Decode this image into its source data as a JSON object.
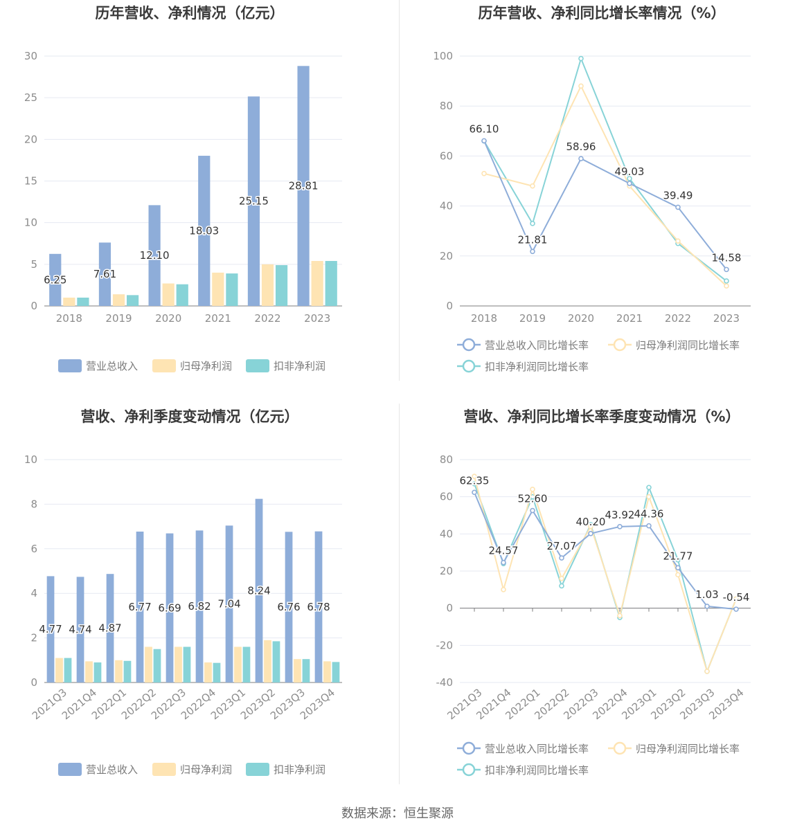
{
  "colors": {
    "revenue": "#8eadd9",
    "parent_profit": "#fee4b3",
    "deducted_profit": "#87d3d7",
    "grid": "#e6e9f2",
    "axis": "#7c7c7c"
  },
  "source_text": "数据来源：恒生聚源",
  "chart_data": [
    {
      "type": "bar",
      "title": "历年营收、净利情况（亿元）",
      "categories": [
        "2018",
        "2019",
        "2020",
        "2021",
        "2022",
        "2023"
      ],
      "ylim": [
        0,
        30
      ],
      "yticks": [
        0,
        5,
        10,
        15,
        20,
        25,
        30
      ],
      "grid": true,
      "legend_position": "bottom",
      "series": [
        {
          "name": "营业总收入",
          "values": [
            6.25,
            7.61,
            12.1,
            18.03,
            25.15,
            28.81
          ],
          "labels": [
            "6.25",
            "7.61",
            "12.10",
            "18.03",
            "25.15",
            "28.81"
          ]
        },
        {
          "name": "归母净利润",
          "values": [
            1.0,
            1.4,
            2.7,
            4.0,
            5.0,
            5.4
          ]
        },
        {
          "name": "扣非净利润",
          "values": [
            1.0,
            1.3,
            2.6,
            3.9,
            4.9,
            5.4
          ]
        }
      ]
    },
    {
      "type": "line",
      "title": "历年营收、净利同比增长率情况（%）",
      "categories": [
        "2018",
        "2019",
        "2020",
        "2021",
        "2022",
        "2023"
      ],
      "ylim": [
        0,
        100
      ],
      "yticks": [
        0,
        20,
        40,
        60,
        80,
        100
      ],
      "grid": true,
      "legend_position": "bottom",
      "series": [
        {
          "name": "营业总收入同比增长率",
          "values": [
            66.1,
            21.81,
            58.96,
            49.03,
            39.49,
            14.58
          ],
          "labels": [
            "66.10",
            "21.81",
            "58.96",
            "49.03",
            "39.49",
            "14.58"
          ]
        },
        {
          "name": "归母净利润同比增长率",
          "values": [
            53,
            48,
            88,
            48,
            26,
            8
          ]
        },
        {
          "name": "扣非净利润同比增长率",
          "values": [
            66,
            33,
            99,
            51,
            25,
            10
          ]
        }
      ]
    },
    {
      "type": "bar",
      "title": "营收、净利季度变动情况（亿元）",
      "categories": [
        "2021Q3",
        "2021Q4",
        "2022Q1",
        "2022Q2",
        "2022Q3",
        "2022Q4",
        "2023Q1",
        "2023Q2",
        "2023Q3",
        "2023Q4"
      ],
      "ylim": [
        0,
        10
      ],
      "yticks": [
        0,
        2,
        4,
        6,
        8,
        10
      ],
      "grid": true,
      "legend_position": "bottom",
      "series": [
        {
          "name": "营业总收入",
          "values": [
            4.77,
            4.74,
            4.87,
            6.77,
            6.69,
            6.82,
            7.04,
            8.24,
            6.76,
            6.78
          ],
          "labels": [
            "4.77",
            "4.74",
            "4.87",
            "6.77",
            "6.69",
            "6.82",
            "7.04",
            "8.24",
            "6.76",
            "6.78"
          ]
        },
        {
          "name": "归母净利润",
          "values": [
            1.1,
            0.95,
            1.0,
            1.6,
            1.6,
            0.9,
            1.6,
            1.9,
            1.05,
            0.95
          ]
        },
        {
          "name": "扣非净利润",
          "values": [
            1.1,
            0.9,
            0.97,
            1.5,
            1.6,
            0.88,
            1.6,
            1.85,
            1.05,
            0.92
          ]
        }
      ]
    },
    {
      "type": "line",
      "title": "营收、净利同比增长率季度变动情况（%）",
      "categories": [
        "2021Q3",
        "2021Q4",
        "2022Q1",
        "2022Q2",
        "2022Q3",
        "2022Q4",
        "2023Q1",
        "2023Q2",
        "2023Q3",
        "2023Q4"
      ],
      "ylim": [
        -40,
        80
      ],
      "yticks": [
        -40,
        -20,
        0,
        20,
        40,
        60,
        80
      ],
      "grid": true,
      "legend_position": "bottom",
      "series": [
        {
          "name": "营业总收入同比增长率",
          "values": [
            62.35,
            24.57,
            52.6,
            27.07,
            40.2,
            43.92,
            44.36,
            21.77,
            1.03,
            -0.54
          ],
          "labels": [
            "62.35",
            "24.57",
            "52.60",
            "27.07",
            "40.20",
            "43.92",
            "44.36",
            "21.77",
            "1.03",
            "-0.54"
          ]
        },
        {
          "name": "归母净利润同比增长率",
          "values": [
            71,
            10,
            64,
            16,
            44,
            -4,
            60,
            18,
            -34,
            5
          ]
        },
        {
          "name": "扣非净利润同比增长率",
          "values": [
            67,
            24,
            60,
            12,
            45,
            -5,
            65,
            26,
            -34,
            5
          ]
        }
      ]
    }
  ]
}
